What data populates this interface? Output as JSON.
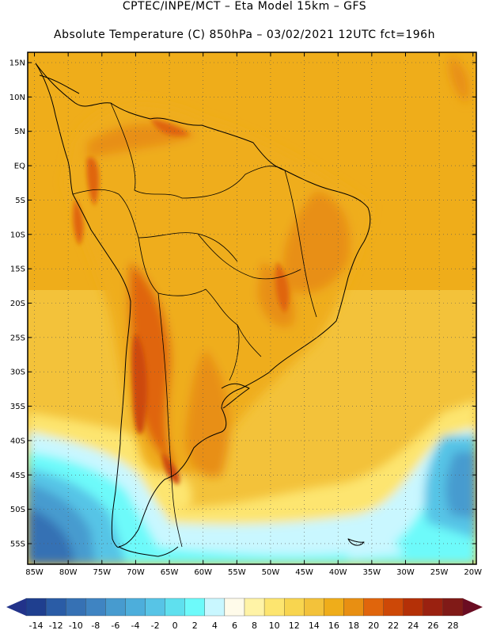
{
  "header": {
    "line1": "CPTEC/INPE/MCT –  Eta Model 15km – GFS",
    "line2": "Absolute Temperature (C) 850hPa – 03/02/2021 12UTC fct=196h"
  },
  "map": {
    "lat_labels": [
      "15N",
      "10N",
      "5N",
      "EQ",
      "5S",
      "10S",
      "15S",
      "20S",
      "25S",
      "30S",
      "35S",
      "40S",
      "45S",
      "50S",
      "55S"
    ],
    "lat_values": [
      15,
      10,
      5,
      0,
      -5,
      -10,
      -15,
      -20,
      -25,
      -30,
      -35,
      -40,
      -45,
      -50,
      -55
    ],
    "lon_labels": [
      "85W",
      "80W",
      "75W",
      "70W",
      "65W",
      "60W",
      "55W",
      "50W",
      "45W",
      "40W",
      "35W",
      "30W",
      "25W",
      "20W"
    ],
    "lon_values": [
      -85,
      -80,
      -75,
      -70,
      -65,
      -60,
      -55,
      -50,
      -45,
      -40,
      -35,
      -30,
      -25,
      -20
    ],
    "lat_range": [
      -58,
      16.5
    ],
    "lon_range": [
      -86,
      -19.5
    ]
  },
  "colorbar": {
    "labels": [
      "-14",
      "-12",
      "-10",
      "-8",
      "-6",
      "-4",
      "-2",
      "0",
      "2",
      "4",
      "6",
      "8",
      "10",
      "12",
      "14",
      "16",
      "18",
      "20",
      "22",
      "24",
      "26",
      "28"
    ],
    "colors": [
      "#1f3f8f",
      "#2a5ca6",
      "#3671b4",
      "#3f84c2",
      "#479bcf",
      "#4daedb",
      "#57c4e6",
      "#5fe0ee",
      "#6dfafa",
      "#c9f7ff",
      "#fffbea",
      "#fff3a6",
      "#fde56f",
      "#f8d54f",
      "#f3c23a",
      "#efad1a",
      "#e88f12",
      "#e0650c",
      "#cd4807",
      "#b43007",
      "#9a2110",
      "#801a17"
    ],
    "under_color": "#22338a",
    "over_color": "#6a0d22"
  }
}
